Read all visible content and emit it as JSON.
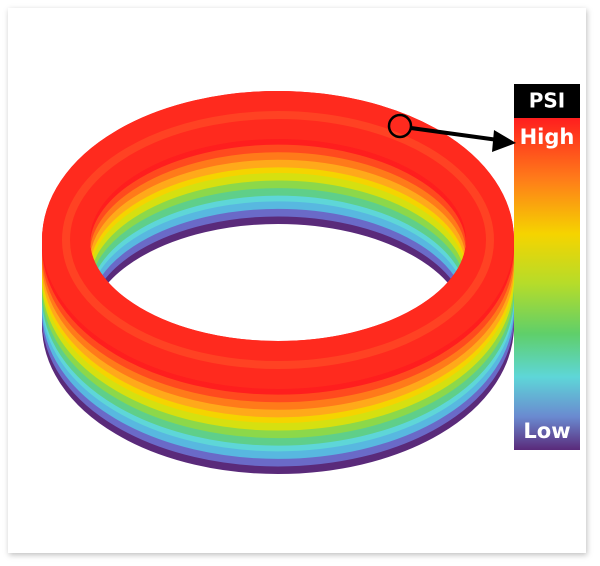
{
  "legend": {
    "title": "PSI",
    "high": "High",
    "low": "Low"
  }
}
